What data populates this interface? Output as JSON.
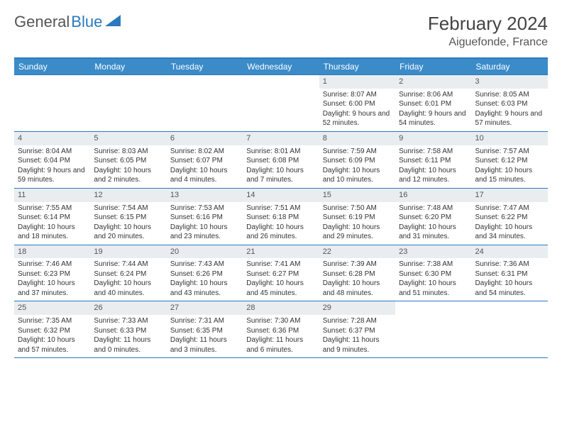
{
  "brand": {
    "part1": "General",
    "part2": "Blue"
  },
  "title": "February 2024",
  "location": "Aiguefonde, France",
  "colors": {
    "header_bg": "#3b8bc9",
    "border": "#2a7abf",
    "daynum_bg": "#e9edf0",
    "text": "#333333"
  },
  "day_names": [
    "Sunday",
    "Monday",
    "Tuesday",
    "Wednesday",
    "Thursday",
    "Friday",
    "Saturday"
  ],
  "weeks": [
    [
      {
        "n": "",
        "sr": "",
        "ss": "",
        "dl": ""
      },
      {
        "n": "",
        "sr": "",
        "ss": "",
        "dl": ""
      },
      {
        "n": "",
        "sr": "",
        "ss": "",
        "dl": ""
      },
      {
        "n": "",
        "sr": "",
        "ss": "",
        "dl": ""
      },
      {
        "n": "1",
        "sr": "8:07 AM",
        "ss": "6:00 PM",
        "dl": "9 hours and 52 minutes."
      },
      {
        "n": "2",
        "sr": "8:06 AM",
        "ss": "6:01 PM",
        "dl": "9 hours and 54 minutes."
      },
      {
        "n": "3",
        "sr": "8:05 AM",
        "ss": "6:03 PM",
        "dl": "9 hours and 57 minutes."
      }
    ],
    [
      {
        "n": "4",
        "sr": "8:04 AM",
        "ss": "6:04 PM",
        "dl": "9 hours and 59 minutes."
      },
      {
        "n": "5",
        "sr": "8:03 AM",
        "ss": "6:05 PM",
        "dl": "10 hours and 2 minutes."
      },
      {
        "n": "6",
        "sr": "8:02 AM",
        "ss": "6:07 PM",
        "dl": "10 hours and 4 minutes."
      },
      {
        "n": "7",
        "sr": "8:01 AM",
        "ss": "6:08 PM",
        "dl": "10 hours and 7 minutes."
      },
      {
        "n": "8",
        "sr": "7:59 AM",
        "ss": "6:09 PM",
        "dl": "10 hours and 10 minutes."
      },
      {
        "n": "9",
        "sr": "7:58 AM",
        "ss": "6:11 PM",
        "dl": "10 hours and 12 minutes."
      },
      {
        "n": "10",
        "sr": "7:57 AM",
        "ss": "6:12 PM",
        "dl": "10 hours and 15 minutes."
      }
    ],
    [
      {
        "n": "11",
        "sr": "7:55 AM",
        "ss": "6:14 PM",
        "dl": "10 hours and 18 minutes."
      },
      {
        "n": "12",
        "sr": "7:54 AM",
        "ss": "6:15 PM",
        "dl": "10 hours and 20 minutes."
      },
      {
        "n": "13",
        "sr": "7:53 AM",
        "ss": "6:16 PM",
        "dl": "10 hours and 23 minutes."
      },
      {
        "n": "14",
        "sr": "7:51 AM",
        "ss": "6:18 PM",
        "dl": "10 hours and 26 minutes."
      },
      {
        "n": "15",
        "sr": "7:50 AM",
        "ss": "6:19 PM",
        "dl": "10 hours and 29 minutes."
      },
      {
        "n": "16",
        "sr": "7:48 AM",
        "ss": "6:20 PM",
        "dl": "10 hours and 31 minutes."
      },
      {
        "n": "17",
        "sr": "7:47 AM",
        "ss": "6:22 PM",
        "dl": "10 hours and 34 minutes."
      }
    ],
    [
      {
        "n": "18",
        "sr": "7:46 AM",
        "ss": "6:23 PM",
        "dl": "10 hours and 37 minutes."
      },
      {
        "n": "19",
        "sr": "7:44 AM",
        "ss": "6:24 PM",
        "dl": "10 hours and 40 minutes."
      },
      {
        "n": "20",
        "sr": "7:43 AM",
        "ss": "6:26 PM",
        "dl": "10 hours and 43 minutes."
      },
      {
        "n": "21",
        "sr": "7:41 AM",
        "ss": "6:27 PM",
        "dl": "10 hours and 45 minutes."
      },
      {
        "n": "22",
        "sr": "7:39 AM",
        "ss": "6:28 PM",
        "dl": "10 hours and 48 minutes."
      },
      {
        "n": "23",
        "sr": "7:38 AM",
        "ss": "6:30 PM",
        "dl": "10 hours and 51 minutes."
      },
      {
        "n": "24",
        "sr": "7:36 AM",
        "ss": "6:31 PM",
        "dl": "10 hours and 54 minutes."
      }
    ],
    [
      {
        "n": "25",
        "sr": "7:35 AM",
        "ss": "6:32 PM",
        "dl": "10 hours and 57 minutes."
      },
      {
        "n": "26",
        "sr": "7:33 AM",
        "ss": "6:33 PM",
        "dl": "11 hours and 0 minutes."
      },
      {
        "n": "27",
        "sr": "7:31 AM",
        "ss": "6:35 PM",
        "dl": "11 hours and 3 minutes."
      },
      {
        "n": "28",
        "sr": "7:30 AM",
        "ss": "6:36 PM",
        "dl": "11 hours and 6 minutes."
      },
      {
        "n": "29",
        "sr": "7:28 AM",
        "ss": "6:37 PM",
        "dl": "11 hours and 9 minutes."
      },
      {
        "n": "",
        "sr": "",
        "ss": "",
        "dl": ""
      },
      {
        "n": "",
        "sr": "",
        "ss": "",
        "dl": ""
      }
    ]
  ],
  "labels": {
    "sunrise": "Sunrise: ",
    "sunset": "Sunset: ",
    "daylight": "Daylight: "
  }
}
